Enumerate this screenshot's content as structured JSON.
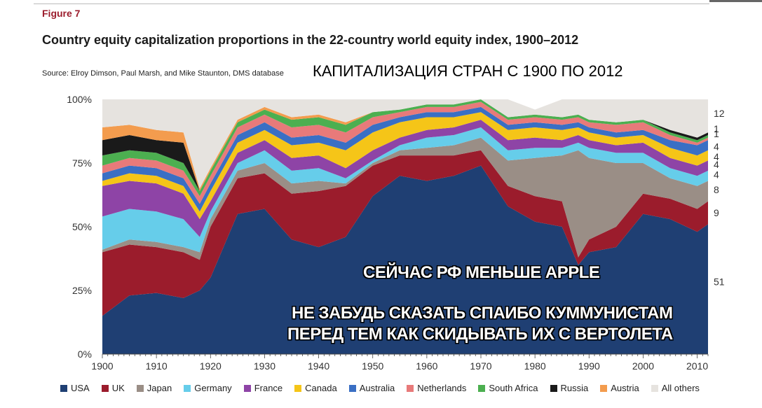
{
  "figure_label": "Figure 7",
  "title": "Country equity capitalization proportions in the 22-country world equity index, 1900–2012",
  "source": "Source: Elroy Dimson, Paul Marsh, and Mike Staunton, DMS database",
  "russian_title": "КАПИТАЛИЗАЦИЯ СТРАН С 1900 ПО 2012",
  "overlay_line1": "СЕЙЧАС РФ МЕНЬШЕ APPLE",
  "overlay_line2": "НЕ ЗАБУДЬ СКАЗАТЬ СПАИБО КУММУНИСТАМ",
  "overlay_line3": "ПЕРЕД ТЕМ КАК СКИДЫВАТЬ ИХ С ВЕРТОЛЕТА",
  "chart_data": {
    "type": "area",
    "stacked": true,
    "xlim": [
      1900,
      2012
    ],
    "ylim": [
      0,
      100
    ],
    "x_ticks": [
      1900,
      1910,
      1920,
      1930,
      1940,
      1950,
      1960,
      1970,
      1980,
      1990,
      2000,
      2010
    ],
    "y_ticks": [
      {
        "value": 0,
        "label": "0%"
      },
      {
        "value": 25,
        "label": "25%"
      },
      {
        "value": 50,
        "label": "50%"
      },
      {
        "value": 75,
        "label": "75%"
      },
      {
        "value": 100,
        "label": "100%"
      }
    ],
    "right_labels": [
      {
        "value": 94.5,
        "label": "12"
      },
      {
        "value": 88.5,
        "label": "1"
      },
      {
        "value": 86.5,
        "label": "1"
      },
      {
        "value": 81.5,
        "label": "4"
      },
      {
        "value": 77.5,
        "label": "4"
      },
      {
        "value": 74.5,
        "label": "4"
      },
      {
        "value": 70.5,
        "label": "4"
      },
      {
        "value": 64.5,
        "label": "8"
      },
      {
        "value": 55.5,
        "label": "9"
      },
      {
        "value": 28.5,
        "label": "51"
      }
    ],
    "x": [
      1900,
      1905,
      1910,
      1915,
      1918,
      1920,
      1925,
      1930,
      1935,
      1940,
      1945,
      1950,
      1955,
      1960,
      1965,
      1970,
      1975,
      1980,
      1985,
      1988,
      1990,
      1995,
      2000,
      2005,
      2010,
      2012
    ],
    "series": [
      {
        "name": "USA",
        "color": "#1f3f73",
        "values": [
          15,
          23,
          24,
          22,
          25,
          30,
          55,
          57,
          45,
          42,
          46,
          62,
          70,
          68,
          70,
          74,
          58,
          52,
          50,
          35,
          40,
          42,
          55,
          53,
          48,
          51
        ]
      },
      {
        "name": "UK",
        "color": "#9b1c2c",
        "values": [
          25,
          20,
          18,
          18,
          12,
          20,
          14,
          14,
          18,
          22,
          20,
          12,
          8,
          10,
          8,
          6,
          8,
          10,
          10,
          3,
          5,
          8,
          8,
          8,
          9,
          9
        ]
      },
      {
        "name": "Japan",
        "color": "#9a8e86",
        "values": [
          1,
          2,
          2,
          2,
          3,
          3,
          3,
          4,
          4,
          4,
          1,
          1,
          2,
          3,
          4,
          5,
          10,
          15,
          18,
          42,
          32,
          25,
          12,
          8,
          9,
          8
        ]
      },
      {
        "name": "Germany",
        "color": "#66cdea",
        "values": [
          13,
          12,
          12,
          11,
          6,
          3,
          3,
          5,
          5,
          5,
          2,
          1,
          2,
          4,
          4,
          4,
          4,
          4,
          3,
          3,
          4,
          4,
          4,
          4,
          4,
          4
        ]
      },
      {
        "name": "France",
        "color": "#8e44a6",
        "values": [
          12,
          11,
          11,
          10,
          7,
          4,
          4,
          4,
          5,
          5,
          4,
          4,
          3,
          3,
          3,
          3,
          4,
          4,
          3,
          3,
          3,
          3,
          4,
          4,
          4,
          4
        ]
      },
      {
        "name": "Canada",
        "color": "#f5c518",
        "values": [
          2,
          3,
          3,
          3,
          3,
          4,
          4,
          4,
          5,
          5,
          7,
          7,
          6,
          5,
          4,
          3,
          4,
          4,
          4,
          3,
          3,
          3,
          3,
          4,
          4,
          4
        ]
      },
      {
        "name": "Australia",
        "color": "#3a6fc4",
        "values": [
          3,
          3,
          3,
          3,
          3,
          3,
          3,
          3,
          3,
          3,
          3,
          3,
          2,
          2,
          2,
          2,
          2,
          2,
          2,
          2,
          2,
          2,
          2,
          3,
          4,
          4
        ]
      },
      {
        "name": "Netherlands",
        "color": "#e87a7a",
        "values": [
          3,
          3,
          3,
          3,
          3,
          3,
          3,
          3,
          4,
          4,
          4,
          3,
          2,
          2,
          2,
          2,
          2,
          2,
          2,
          2,
          2,
          3,
          3,
          2,
          1,
          1
        ]
      },
      {
        "name": "South Africa",
        "color": "#4caf50",
        "values": [
          4,
          3,
          3,
          3,
          2,
          2,
          2,
          2,
          3,
          3,
          3,
          2,
          1,
          1,
          1,
          1,
          1,
          1,
          1,
          1,
          1,
          1,
          1,
          1,
          1,
          1
        ]
      },
      {
        "name": "Russia",
        "color": "#1a1a1a",
        "values": [
          6,
          6,
          5,
          8,
          0,
          0,
          0,
          0,
          0,
          0,
          0,
          0,
          0,
          0,
          0,
          0,
          0,
          0,
          0,
          0,
          0,
          0,
          0,
          1,
          1,
          1
        ]
      },
      {
        "name": "Austria",
        "color": "#f39c4e",
        "values": [
          5,
          4,
          4,
          4,
          1,
          1,
          1,
          1,
          1,
          1,
          1,
          0,
          0,
          0,
          0,
          0,
          0,
          0,
          0,
          0,
          0,
          0,
          0,
          0,
          0,
          0
        ]
      },
      {
        "name": "All others",
        "color": "#e6e3df",
        "values": [
          11,
          10,
          12,
          13,
          35,
          27,
          8,
          3,
          7,
          6,
          9,
          5,
          4,
          2,
          2,
          0,
          7,
          2,
          7,
          6,
          8,
          9,
          8,
          12,
          15,
          13
        ]
      }
    ]
  }
}
